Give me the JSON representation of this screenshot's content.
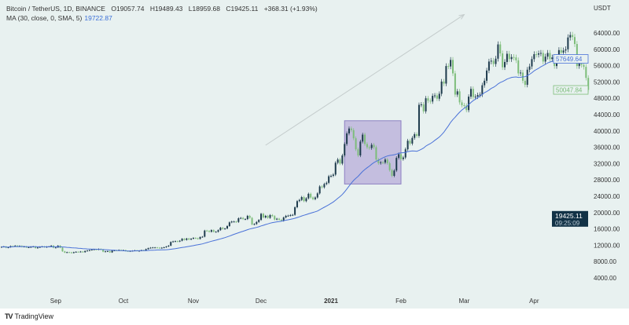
{
  "header": {
    "symbol": "Bitcoin / TetherUS, 1D, BINANCE",
    "open": "O19057.74",
    "high": "H19489.43",
    "low": "L18959.68",
    "close": "C19425.11",
    "change": "+368.31 (+1.93%)",
    "ma_label": "MA (30, close, 0, SMA, 5)",
    "ma_value": "19722.87"
  },
  "footer": {
    "brand": "TradingView"
  },
  "colors": {
    "background": "#e8f1f0",
    "up_candle": "#1d3a4c",
    "down_candle": "#7dbd7a",
    "ma_line": "#4a72d8",
    "box_fill": "#b8acd9",
    "last_price_bg": "#123246"
  },
  "chart_data": {
    "type": "candlestick",
    "currency_label": "USDT",
    "start_date": "2020-08-08",
    "ylim": [
      0,
      68000
    ],
    "yticks": [
      "64000.00",
      "60000.00",
      "56000.00",
      "52000.00",
      "48000.00",
      "44000.00",
      "40000.00",
      "36000.00",
      "32000.00",
      "28000.00",
      "24000.00",
      "20000.00",
      "16000.00",
      "12000.00",
      "8000.00",
      "4000.00"
    ],
    "xticks": [
      {
        "label": "Sep",
        "date": "2020-09-01"
      },
      {
        "label": "Oct",
        "date": "2020-10-01"
      },
      {
        "label": "Nov",
        "date": "2020-11-01"
      },
      {
        "label": "Dec",
        "date": "2020-12-01"
      },
      {
        "label": "2021",
        "date": "2021-01-01"
      },
      {
        "label": "Feb",
        "date": "2021-02-01"
      },
      {
        "label": "Mar",
        "date": "2021-03-01"
      },
      {
        "label": "Apr",
        "date": "2021-04-01"
      }
    ],
    "closes": [
      11600,
      11700,
      11400,
      11500,
      11800,
      11750,
      11900,
      11700,
      11850,
      11600,
      11700,
      11450,
      11500,
      11600,
      11700,
      11300,
      11450,
      11600,
      11700,
      11500,
      11650,
      11700,
      11900,
      11400,
      11450,
      11900,
      11400,
      10500,
      10200,
      10300,
      10250,
      10100,
      10300,
      10400,
      10350,
      10450,
      10300,
      10600,
      10700,
      10800,
      10950,
      11000,
      10900,
      11100,
      10950,
      10400,
      10500,
      10550,
      10250,
      10700,
      10750,
      10700,
      10850,
      10750,
      10800,
      10600,
      10550,
      10600,
      10650,
      10750,
      10600,
      10650,
      10800,
      10700,
      11050,
      11300,
      11400,
      11450,
      11450,
      11400,
      11300,
      11400,
      11500,
      11700,
      11900,
      12800,
      12950,
      13000,
      12900,
      13100,
      13600,
      13300,
      13650,
      13400,
      13600,
      13800,
      13700,
      13550,
      14000,
      14100,
      15600,
      15500,
      15300,
      15700,
      15300,
      15300,
      15700,
      16300,
      16000,
      16100,
      16700,
      17600,
      17800,
      17800,
      17700,
      18600,
      18700,
      18400,
      18400,
      19200,
      18700,
      17100,
      17200,
      17700,
      18200,
      19700,
      18800,
      19200,
      18700,
      19400,
      19150,
      18300,
      18500,
      18250,
      18000,
      18800,
      19200,
      19250,
      19400,
      19450,
      21300,
      22800,
      23100,
      23800,
      22800,
      23500,
      24600,
      23700,
      23300,
      23700,
      24700,
      26400,
      26200,
      27000,
      27300,
      28900,
      29000,
      29300,
      32200,
      33000,
      32000,
      34000,
      36800,
      39400,
      40600,
      40200,
      38200,
      35500,
      34000,
      37400,
      39100,
      36800,
      36000,
      35800,
      36600,
      36000,
      33000,
      32100,
      32300,
      32250,
      33000,
      32100,
      30400,
      29000,
      30300,
      33400,
      34300,
      33100,
      33500,
      35500,
      37600,
      36900,
      38300,
      39200,
      38800,
      46400,
      46500,
      44800,
      48000,
      47400,
      47200,
      48600,
      48700,
      47900,
      49100,
      52100,
      51600,
      55900,
      55800,
      57400,
      54100,
      48900,
      49700,
      47000,
      46300,
      46200,
      45100,
      48400,
      50300,
      48300,
      48400,
      48800,
      48900,
      51200,
      52300,
      54800,
      57000,
      57200,
      56400,
      57700,
      61200,
      59000,
      55600,
      56900,
      58900,
      57600,
      58100,
      58000,
      57300,
      54100,
      54300,
      52300,
      51300,
      55000,
      55800,
      57600,
      58800,
      58700,
      59000,
      59100,
      57000,
      58200,
      59100,
      57600,
      58000,
      55900,
      58100,
      59800,
      59200,
      59700,
      60000,
      62900,
      63500,
      63000,
      61300,
      55900,
      56500,
      56200,
      55700,
      53000,
      50048
    ],
    "ma_period": 30,
    "price_labels": {
      "ma": "57649.64",
      "last_close": "50047.84",
      "current_price": "19425.11",
      "countdown": "09:25:09"
    },
    "annotations": [
      {
        "type": "arrow",
        "from": {
          "date": "2020-12-03",
          "price": 36500
        },
        "to": {
          "date": "2021-03-01",
          "price": 68500
        }
      },
      {
        "type": "rectangle",
        "from": {
          "date": "2021-01-07",
          "price": 42500
        },
        "to": {
          "date": "2021-02-01",
          "price": 27000
        }
      }
    ]
  }
}
